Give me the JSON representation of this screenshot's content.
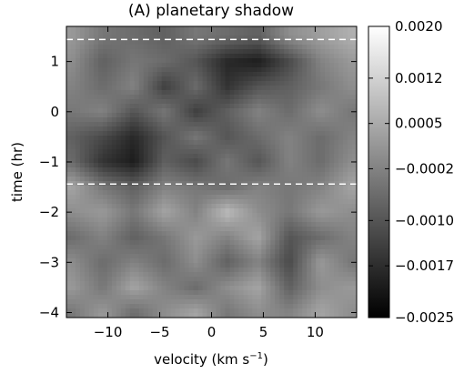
{
  "chart_data": {
    "type": "heatmap",
    "title": "(A) planetary shadow",
    "xlabel": "velocity  (km s",
    "xlabel_sup": "−1",
    "xlabel_close": ")",
    "ylabel": "time (hr)",
    "xlim": [
      -14,
      14
    ],
    "ylim": [
      -4.1,
      1.7
    ],
    "x_ticks": [
      -10,
      -5,
      0,
      5,
      10
    ],
    "x_tick_labels": [
      "−10",
      "−5",
      "0",
      "5",
      "10"
    ],
    "y_ticks": [
      1,
      0,
      -1,
      -2,
      -3,
      -4
    ],
    "y_tick_labels": [
      "1",
      "0",
      "−1",
      "−2",
      "−3",
      "−4"
    ],
    "hlines": [
      1.44,
      -1.44
    ],
    "colorbar": {
      "range": [
        -0.0025,
        0.002
      ],
      "ticks": [
        0.002,
        0.0012,
        0.0005,
        -0.0002,
        -0.001,
        -0.0017,
        -0.0025
      ],
      "tick_labels": [
        "0.0020",
        "0.0012",
        "0.0005",
        "−0.0002",
        "−0.0010",
        "−0.0017",
        "−0.0025"
      ],
      "colormap": "grayscale (black low, white high)"
    },
    "grid": {
      "x": [
        -13.5,
        -10.5,
        -7.5,
        -4.5,
        -1.5,
        1.5,
        4.5,
        7.5,
        10.5,
        13.5
      ],
      "y": [
        1.5,
        1.0,
        0.5,
        0.0,
        -0.5,
        -1.0,
        -1.5,
        -2.0,
        -2.5,
        -3.0,
        -3.5,
        -4.0
      ],
      "z": [
        [
          0.0002,
          -0.0004,
          -0.0006,
          -0.0008,
          -0.0004,
          -0.0006,
          -0.0008,
          0.0,
          0.0003,
          0.0006
        ],
        [
          0.0,
          -0.0008,
          -0.0004,
          -0.0006,
          -0.001,
          -0.0018,
          -0.002,
          -0.0012,
          -0.0002,
          0.0002
        ],
        [
          -0.0002,
          -0.0006,
          -0.0002,
          -0.0014,
          -0.0006,
          -0.0016,
          -0.001,
          -0.0008,
          -0.0004,
          0.0
        ],
        [
          -0.0004,
          -0.0002,
          -0.001,
          -0.0004,
          -0.0014,
          -0.0008,
          -0.0002,
          -0.0006,
          0.0,
          -0.0004
        ],
        [
          -0.0008,
          -0.0012,
          -0.0018,
          -0.001,
          -0.0004,
          -0.001,
          -0.0006,
          -0.0002,
          -0.0006,
          -0.0002
        ],
        [
          -0.0006,
          -0.0016,
          -0.002,
          -0.0008,
          -0.0012,
          -0.0004,
          -0.001,
          -0.0002,
          -0.0006,
          0.0
        ],
        [
          0.0004,
          -0.0004,
          -0.0008,
          -0.0002,
          -0.0004,
          -0.0006,
          -0.0002,
          -0.0004,
          -0.0002,
          0.0004
        ],
        [
          0.0,
          0.0002,
          -0.0004,
          0.0004,
          -0.0002,
          0.0008,
          0.0,
          -0.0004,
          0.0002,
          0.0
        ],
        [
          -0.0006,
          -0.0002,
          -0.0008,
          -0.0004,
          0.0002,
          -0.0002,
          0.0004,
          -0.001,
          -0.0006,
          -0.0002
        ],
        [
          0.0,
          -0.0006,
          -0.0002,
          -0.0006,
          0.0,
          -0.0008,
          -0.0002,
          -0.0012,
          0.0002,
          -0.0004
        ],
        [
          0.0002,
          -0.0004,
          0.0004,
          -0.0002,
          -0.0006,
          0.0,
          0.0004,
          -0.0008,
          0.0,
          0.0002
        ],
        [
          -0.0004,
          0.0002,
          -0.0006,
          0.0,
          0.0004,
          -0.0004,
          0.0,
          -0.0002,
          0.0004,
          0.0
        ]
      ]
    }
  }
}
